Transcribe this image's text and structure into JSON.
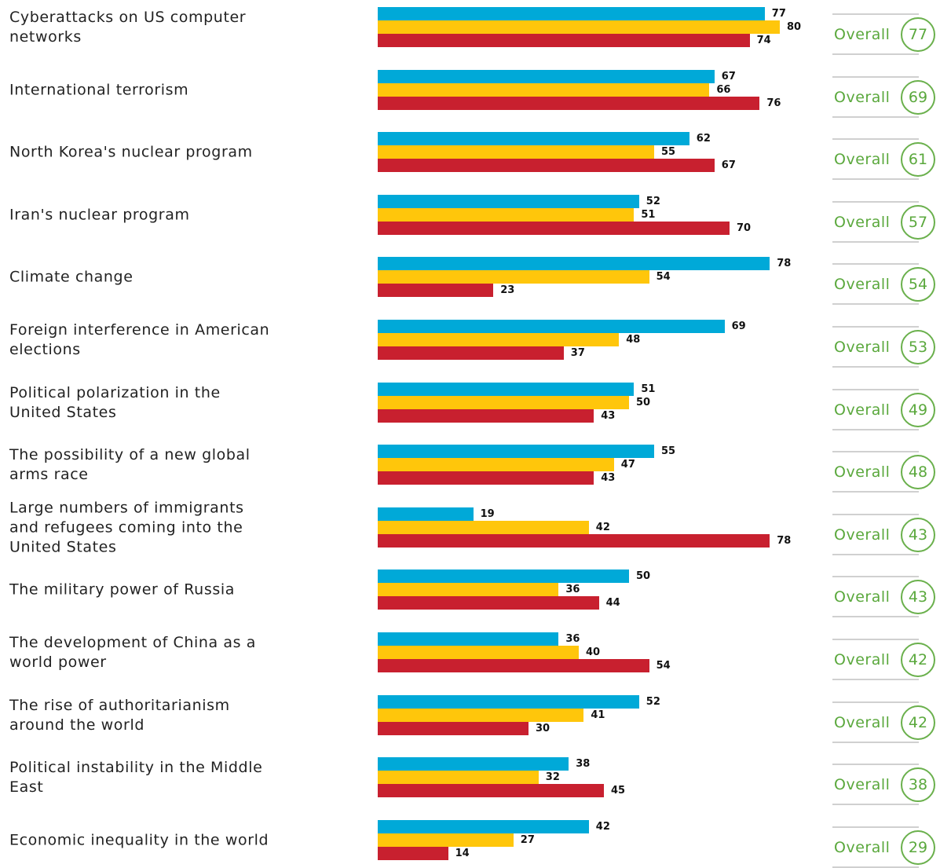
{
  "chart_data": {
    "type": "bar",
    "categories": [
      "Cyberattacks on US computer networks",
      "International terrorism",
      "North Korea's nuclear program",
      "Iran's nuclear program",
      "Climate change",
      "Foreign interference in American elections",
      "Political polarization in the United States",
      "The possibility of a new global arms race",
      "Large numbers of immigrants and refugees coming into the United States",
      "The military power of Russia",
      "The development of China as a world power",
      "The rise of authoritarianism around the world",
      "Political instability in the Middle East",
      "Economic inequality in the world"
    ],
    "series": [
      {
        "color": "#00a9d8",
        "values": [
          77,
          67,
          62,
          52,
          78,
          69,
          51,
          55,
          19,
          50,
          36,
          52,
          38,
          42
        ]
      },
      {
        "color": "#ffc60b",
        "values": [
          80,
          66,
          55,
          51,
          54,
          48,
          50,
          47,
          42,
          36,
          40,
          41,
          32,
          27
        ]
      },
      {
        "color": "#c8202f",
        "values": [
          74,
          76,
          67,
          70,
          23,
          37,
          43,
          43,
          78,
          44,
          54,
          30,
          45,
          14
        ]
      }
    ],
    "overall_label": "Overall",
    "overall": [
      77,
      69,
      61,
      57,
      54,
      53,
      49,
      48,
      43,
      43,
      42,
      42,
      38,
      29
    ]
  }
}
